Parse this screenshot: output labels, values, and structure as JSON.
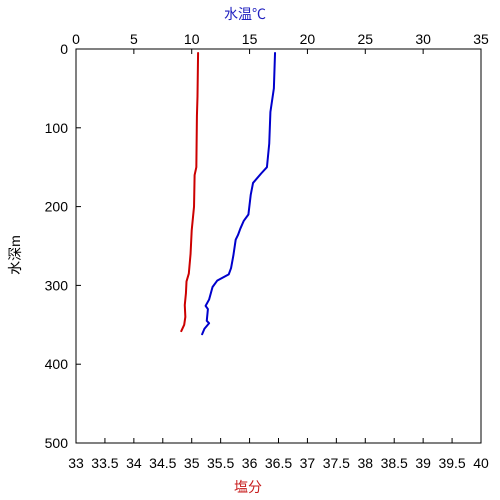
{
  "chart_data": {
    "type": "line",
    "title": "",
    "axes": {
      "top": {
        "label": "水温℃",
        "min": 0,
        "max": 35,
        "ticks": [
          0,
          5,
          10,
          15,
          20,
          25,
          30,
          35
        ],
        "color": "#1f1fbf"
      },
      "bottom": {
        "label": "塩分",
        "min": 33,
        "max": 40,
        "ticks": [
          33,
          33.5,
          34,
          34.5,
          35,
          35.5,
          36,
          36.5,
          37,
          37.5,
          38,
          38.5,
          39,
          39.5,
          40
        ],
        "color": "#c81e1e"
      },
      "left": {
        "label": "水深m",
        "min": 0,
        "max": 500,
        "ticks": [
          0,
          100,
          200,
          300,
          400,
          500
        ],
        "inverted": true
      }
    },
    "series": [
      {
        "axis": "top",
        "color": "#0000cc",
        "points": [
          [
            17.2,
            5
          ],
          [
            17.1,
            50
          ],
          [
            16.8,
            80
          ],
          [
            16.7,
            120
          ],
          [
            16.5,
            150
          ],
          [
            16.0,
            158
          ],
          [
            15.3,
            170
          ],
          [
            15.1,
            185
          ],
          [
            14.9,
            210
          ],
          [
            14.5,
            218
          ],
          [
            14.2,
            228
          ],
          [
            14.0,
            236
          ],
          [
            13.8,
            242
          ],
          [
            13.6,
            262
          ],
          [
            13.4,
            278
          ],
          [
            13.2,
            286
          ],
          [
            12.2,
            294
          ],
          [
            11.8,
            302
          ],
          [
            11.5,
            318
          ],
          [
            11.2,
            326
          ],
          [
            11.4,
            330
          ],
          [
            11.3,
            345
          ],
          [
            11.5,
            348
          ],
          [
            11.1,
            355
          ],
          [
            10.9,
            362
          ]
        ]
      },
      {
        "axis": "bottom",
        "color": "#cc0000",
        "points": [
          [
            35.11,
            5
          ],
          [
            35.1,
            60
          ],
          [
            35.09,
            85
          ],
          [
            35.08,
            150
          ],
          [
            35.05,
            160
          ],
          [
            35.04,
            200
          ],
          [
            35.0,
            230
          ],
          [
            34.98,
            260
          ],
          [
            34.95,
            285
          ],
          [
            34.91,
            295
          ],
          [
            34.9,
            310
          ],
          [
            34.88,
            325
          ],
          [
            34.89,
            340
          ],
          [
            34.87,
            350
          ],
          [
            34.82,
            358
          ]
        ]
      }
    ]
  }
}
